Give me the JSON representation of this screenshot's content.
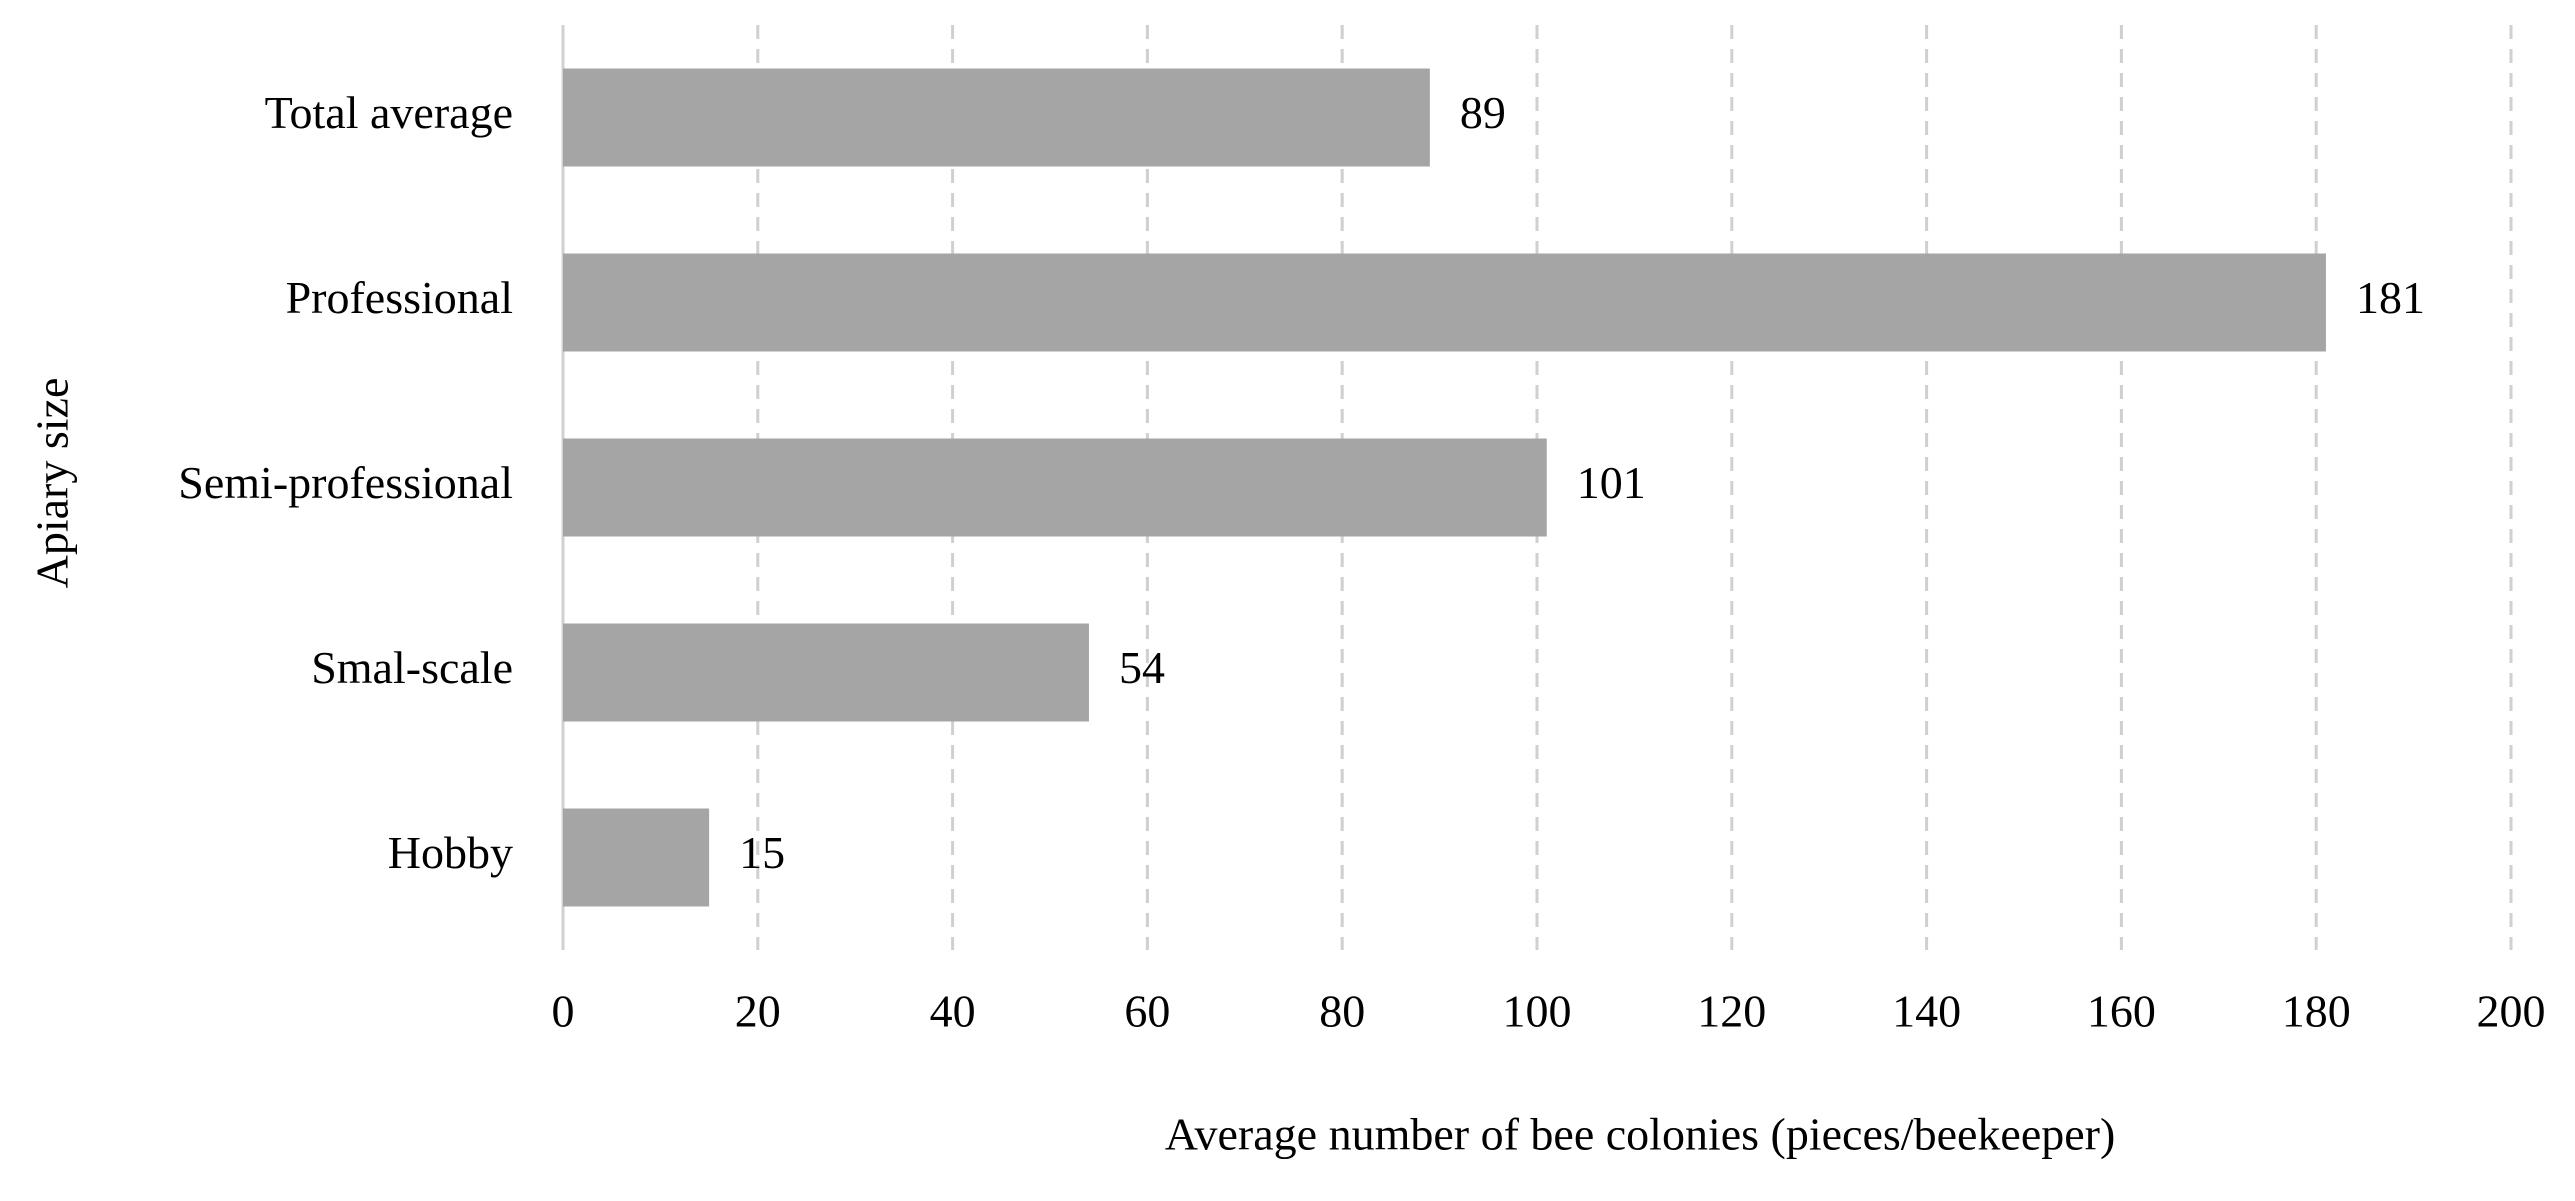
{
  "chart_data": {
    "type": "bar",
    "orientation": "horizontal",
    "x_label": "Average number of bee colonies (pieces/beekeeper)",
    "y_label": "Apiary size",
    "categories": [
      "Total average",
      "Professional",
      "Semi-professional",
      "Smal-scale",
      "Hobby"
    ],
    "values": [
      89,
      181,
      101,
      54,
      15
    ],
    "color": "#a5a5a5",
    "xlim": [
      0,
      200
    ],
    "xticks": [
      0,
      20,
      40,
      60,
      80,
      100,
      120,
      140,
      160,
      180,
      200
    ],
    "grid": true,
    "data_labels": true
  }
}
